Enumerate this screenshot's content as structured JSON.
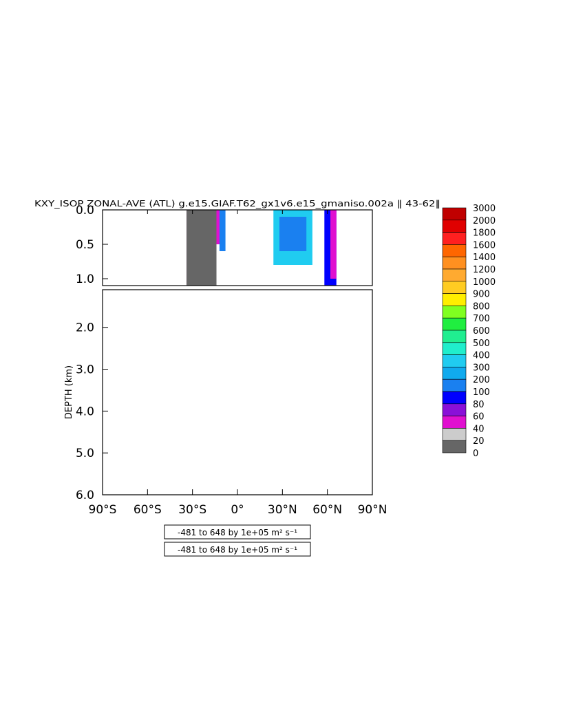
{
  "chart_data": {
    "type": "heatmap",
    "title": "KXY_ISOP ZONAL-AVE (ATL) g.e15.GIAF.T62_gx1v6.e15_gmaniso.002a ‖ 43-62‖",
    "ylabel": "DEPTH (km)",
    "xlabel": "",
    "x_ticks": [
      "90°S",
      "60°S",
      "30°S",
      "0°",
      "30°N",
      "60°N",
      "90°N"
    ],
    "x_tick_values": [
      -90,
      -60,
      -30,
      0,
      30,
      60,
      90
    ],
    "y_ticks_upper": [
      "0.0",
      "0.5",
      "1.0"
    ],
    "y_tick_values_upper": [
      0.0,
      0.5,
      1.0
    ],
    "y_ticks_lower": [
      "2.0",
      "3.0",
      "4.0",
      "5.0",
      "6.0"
    ],
    "y_tick_values_lower": [
      2.0,
      3.0,
      4.0,
      5.0,
      6.0
    ],
    "xlim": [
      -90,
      90
    ],
    "ylim_upper": [
      0.0,
      1.1
    ],
    "ylim_lower": [
      1.1,
      6.0
    ],
    "range_labels": [
      "-481 to 648 by 1e+05 m² s⁻¹",
      "-481 to 648 by 1e+05 m² s⁻¹"
    ],
    "colorbar": {
      "levels": [
        "3000",
        "2000",
        "1800",
        "1600",
        "1400",
        "1200",
        "1000",
        "900",
        "800",
        "700",
        "600",
        "500",
        "400",
        "300",
        "200",
        "100",
        "80",
        "60",
        "40",
        "20",
        "0"
      ],
      "colors": [
        "#c00000",
        "#e00000",
        "#ff2020",
        "#ff6600",
        "#ff9020",
        "#ffaa30",
        "#ffcc22",
        "#ffee00",
        "#80ff20",
        "#20ee40",
        "#20ee90",
        "#20eecc",
        "#20ccf0",
        "#10aaee",
        "#1a80f0",
        "#0000ff",
        "#8a10d8",
        "#e010d0",
        "#cccccc",
        "#666666"
      ]
    },
    "shaded_regions": [
      {
        "lat": [
          -34,
          -29
        ],
        "depth": [
          0.0,
          1.1
        ],
        "color": "#e010d0"
      },
      {
        "lat": [
          -34,
          -14
        ],
        "depth": [
          0.0,
          1.1
        ],
        "color": "#666666"
      },
      {
        "lat": [
          -14,
          -11
        ],
        "depth": [
          0.0,
          0.5
        ],
        "color": "#e010d0"
      },
      {
        "lat": [
          -12,
          -8
        ],
        "depth": [
          0.0,
          0.6
        ],
        "color": "#1a80f0"
      },
      {
        "lat": [
          24,
          50
        ],
        "depth": [
          0.0,
          0.8
        ],
        "color": "#20ccf0"
      },
      {
        "lat": [
          28,
          46
        ],
        "depth": [
          0.1,
          0.6
        ],
        "color": "#1a80f0"
      },
      {
        "lat": [
          58,
          66
        ],
        "depth": [
          0.0,
          1.1
        ],
        "color": "#0000ff"
      },
      {
        "lat": [
          62,
          66
        ],
        "depth": [
          0.0,
          1.0
        ],
        "color": "#e010d0"
      }
    ]
  }
}
